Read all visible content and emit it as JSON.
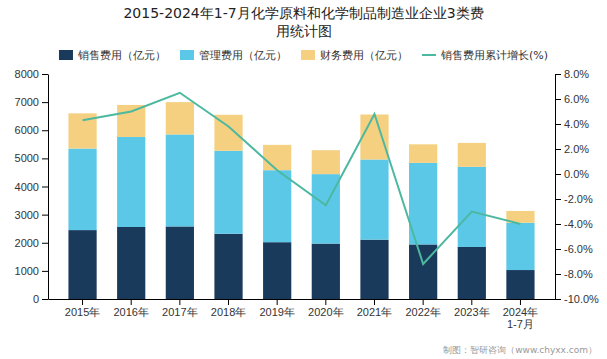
{
  "chart_data": {
    "type": "bar",
    "stacked": true,
    "title": "2015-2024年1-7月化学原料和化学制品制造业企业3类费\n用统计图",
    "categories": [
      "2015年",
      "2016年",
      "2017年",
      "2018年",
      "2019年",
      "2020年",
      "2021年",
      "2022年",
      "2023年",
      "2024年\n1-7月"
    ],
    "series": [
      {
        "name": "销售费用（亿元）",
        "color": "#1a3a5c",
        "values": [
          2450,
          2560,
          2580,
          2320,
          2020,
          1970,
          2110,
          1940,
          1850,
          1030
        ]
      },
      {
        "name": "管理费用（亿元）",
        "color": "#5bc8e8",
        "values": [
          2900,
          3200,
          3270,
          2950,
          2560,
          2470,
          2850,
          2900,
          2850,
          1680
        ]
      },
      {
        "name": "财务费用（亿元）",
        "color": "#f5d080",
        "values": [
          1250,
          1140,
          1150,
          1280,
          900,
          850,
          1600,
          660,
          850,
          420
        ]
      },
      {
        "name": "销售费用累计增长(%)",
        "type": "line",
        "axis": "y2",
        "color": "#4db8a0",
        "values": [
          4.3,
          5.0,
          6.5,
          3.8,
          0.3,
          -2.5,
          4.8,
          -7.2,
          -3.0,
          -4.0
        ]
      }
    ],
    "ylim": [
      0,
      8000
    ],
    "yticks": [
      0,
      1000,
      2000,
      3000,
      4000,
      5000,
      6000,
      7000,
      8000
    ],
    "y2lim": [
      -10.0,
      8.0
    ],
    "y2ticks": [
      {
        "value": -10.0,
        "label": "-10.0%"
      },
      {
        "value": -8.0,
        "label": "-8.0%"
      },
      {
        "value": -6.0,
        "label": "-6.0%"
      },
      {
        "value": -4.0,
        "label": "-4.0%"
      },
      {
        "value": -2.0,
        "label": "-2.0%"
      },
      {
        "value": 0.0,
        "label": "0.0%"
      },
      {
        "value": 2.0,
        "label": "2.0%"
      },
      {
        "value": 4.0,
        "label": "4.0%"
      },
      {
        "value": 6.0,
        "label": "6.0%"
      },
      {
        "value": 8.0,
        "label": "8.0%"
      }
    ],
    "grid": false,
    "legend": "top",
    "annotations": [
      "制图：智研咨询（www.chyxx.com）"
    ]
  }
}
